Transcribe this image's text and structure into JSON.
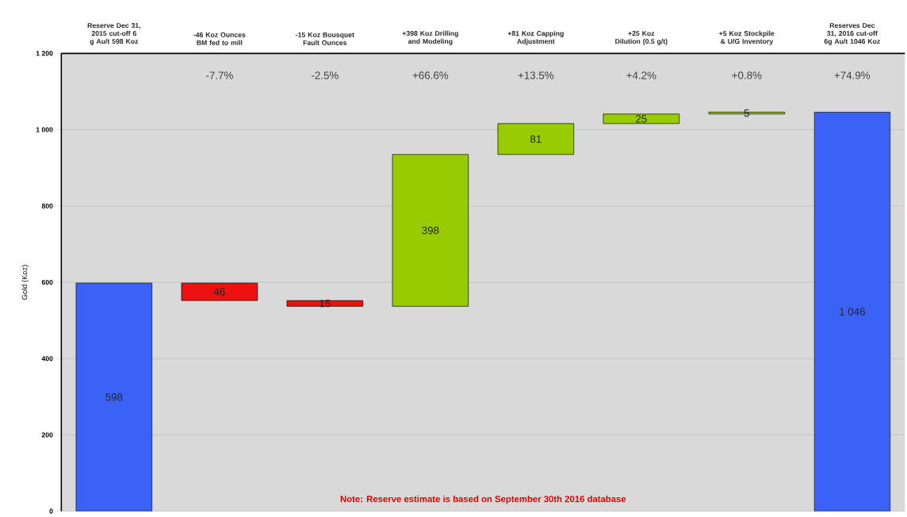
{
  "chart_data": {
    "type": "bar",
    "ylabel": "Gold (Koz)",
    "categories": [
      "Reserve Dec 31, 2015 cut-off 6 g Au/t 598 Koz",
      "-46 Koz Ounces BM fed to mill",
      "-15 Koz Bousquet Fault Ounces",
      "+398 Koz Drilling and Modeling",
      "+81 Koz Capping Adjustment",
      "+25 Koz Dilution (0.5 g/t)",
      "+5 Koz Stockpile & U/G Inventory",
      "Reserves Dec 31, 2016 cut-off 6g Au/t 1046 Koz"
    ],
    "values": [
      598,
      -46,
      -15,
      398,
      81,
      25,
      5,
      1046
    ],
    "base": [
      0,
      598,
      552,
      537,
      935,
      1016,
      1041,
      0
    ],
    "colors": [
      "#3b62f6",
      "#ee1111",
      "#ee1111",
      "#99cc00",
      "#99cc00",
      "#99cc00",
      "#99cc00",
      "#3b62f6"
    ],
    "value_labels": [
      "598",
      "46",
      "15",
      "398",
      "81",
      "25",
      "5",
      "1 046"
    ],
    "ylim": [
      0,
      1200
    ],
    "yticks": [
      0,
      200,
      400,
      600,
      800,
      {
        "value": 1000,
        "label": "1 000"
      },
      {
        "value": 1200,
        "label": "1 200"
      }
    ],
    "grid": "y",
    "annotations": [
      "-7.7%",
      "-2.5%",
      "+66.6%",
      "+13.5%",
      "+4.2%",
      "+0.8%",
      "+74.9%",
      "Note: Reserve estimate is based on September 30th 2016 database"
    ]
  }
}
